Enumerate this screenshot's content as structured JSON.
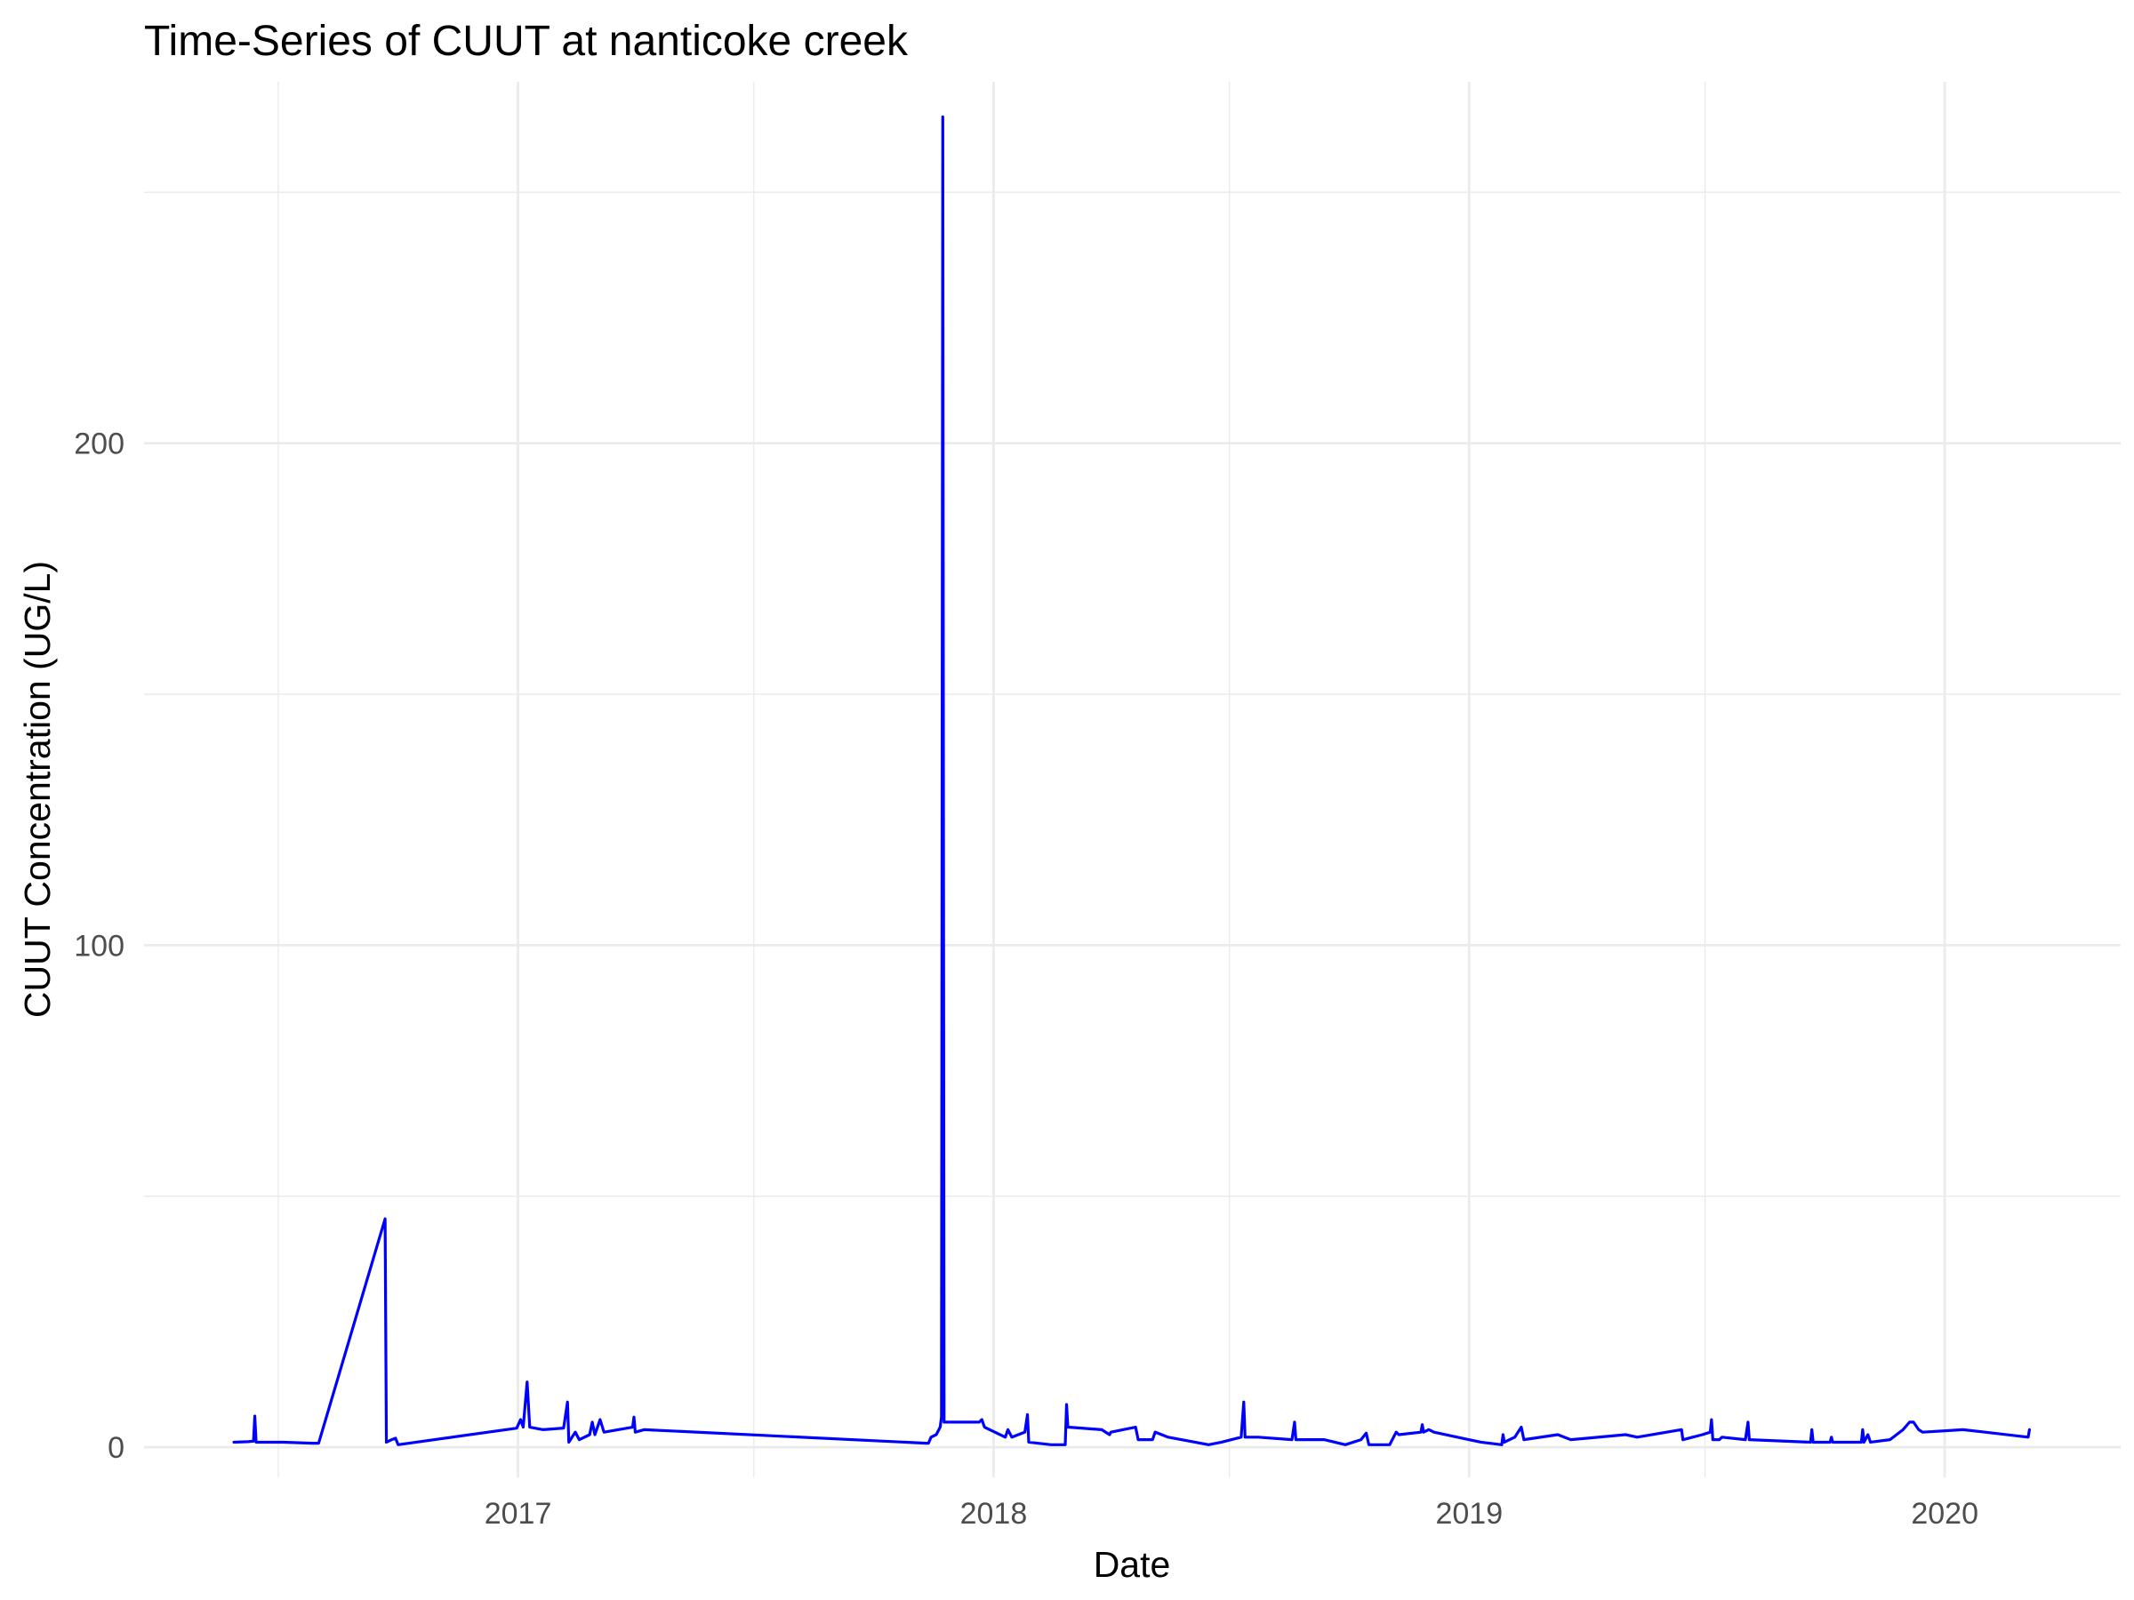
{
  "chart_data": {
    "type": "line",
    "title": "Time-Series of CUUT at nanticoke creek",
    "xlabel": "Date",
    "ylabel": "CUUT Concentration (UG/L)",
    "x_axis_type": "date",
    "xlim": [
      "2016-03-20",
      "2020-05-15"
    ],
    "ylim": [
      -6,
      272
    ],
    "x_ticks": [
      {
        "date": "2017-01-01",
        "label": "2017"
      },
      {
        "date": "2018-01-01",
        "label": "2018"
      },
      {
        "date": "2019-01-01",
        "label": "2019"
      },
      {
        "date": "2020-01-01",
        "label": "2020"
      }
    ],
    "x_minor_ticks": [
      "2016-07-01",
      "2017-07-01",
      "2018-07-01",
      "2019-07-01"
    ],
    "y_ticks": [
      0,
      100,
      200
    ],
    "y_minor_ticks": [
      50,
      150,
      250
    ],
    "grid": true,
    "legend": "none",
    "line_color": "#0000ff",
    "series": [
      {
        "points": [
          [
            "2016-05-28",
            1.0
          ],
          [
            "2016-06-08",
            1.1
          ],
          [
            "2016-06-12",
            1.2
          ],
          [
            "2016-06-13",
            6.2
          ],
          [
            "2016-06-14",
            1.0
          ],
          [
            "2016-07-05",
            1.0
          ],
          [
            "2016-07-27",
            0.8
          ],
          [
            "2016-08-01",
            0.8
          ],
          [
            "2016-09-21",
            45.5
          ],
          [
            "2016-09-22",
            1.0
          ],
          [
            "2016-09-26",
            1.5
          ],
          [
            "2016-09-29",
            1.8
          ],
          [
            "2016-10-01",
            0.5
          ],
          [
            "2016-12-31",
            3.8
          ],
          [
            "2017-01-03",
            5.5
          ],
          [
            "2017-01-05",
            4.0
          ],
          [
            "2017-01-08",
            13.0
          ],
          [
            "2017-01-10",
            4.0
          ],
          [
            "2017-01-20",
            3.5
          ],
          [
            "2017-02-05",
            3.8
          ],
          [
            "2017-02-08",
            9.0
          ],
          [
            "2017-02-09",
            1.0
          ],
          [
            "2017-02-14",
            3.0
          ],
          [
            "2017-02-17",
            1.5
          ],
          [
            "2017-02-25",
            2.5
          ],
          [
            "2017-02-27",
            5.0
          ],
          [
            "2017-03-01",
            2.5
          ],
          [
            "2017-03-05",
            5.5
          ],
          [
            "2017-03-08",
            3.0
          ],
          [
            "2017-03-30",
            4.0
          ],
          [
            "2017-03-31",
            6.0
          ],
          [
            "2017-04-01",
            3.0
          ],
          [
            "2017-04-08",
            3.5
          ],
          [
            "2017-11-10",
            0.8
          ],
          [
            "2017-11-12",
            0.8
          ],
          [
            "2017-11-14",
            2.0
          ],
          [
            "2017-11-18",
            2.5
          ],
          [
            "2017-11-21",
            4.0
          ],
          [
            "2017-11-22",
            6.0
          ],
          [
            "2017-11-23",
            265.0
          ],
          [
            "2017-11-24",
            5.0
          ],
          [
            "2017-12-21",
            5.0
          ],
          [
            "2017-12-23",
            5.5
          ],
          [
            "2017-12-25",
            4.0
          ],
          [
            "2018-01-10",
            2.0
          ],
          [
            "2018-01-12",
            3.5
          ],
          [
            "2018-01-15",
            2.0
          ],
          [
            "2018-01-25",
            3.0
          ],
          [
            "2018-01-27",
            6.5
          ],
          [
            "2018-01-28",
            1.0
          ],
          [
            "2018-02-14",
            0.5
          ],
          [
            "2018-02-25",
            0.5
          ],
          [
            "2018-02-26",
            8.5
          ],
          [
            "2018-02-27",
            4.0
          ],
          [
            "2018-03-25",
            3.5
          ],
          [
            "2018-03-31",
            2.5
          ],
          [
            "2018-04-01",
            3.0
          ],
          [
            "2018-04-20",
            4.0
          ],
          [
            "2018-04-22",
            1.5
          ],
          [
            "2018-05-03",
            1.5
          ],
          [
            "2018-05-05",
            3.0
          ],
          [
            "2018-05-15",
            2.0
          ],
          [
            "2018-06-15",
            0.5
          ],
          [
            "2018-06-25",
            1.0
          ],
          [
            "2018-07-10",
            2.0
          ],
          [
            "2018-07-12",
            9.0
          ],
          [
            "2018-07-13",
            2.0
          ],
          [
            "2018-07-23",
            2.0
          ],
          [
            "2018-08-18",
            1.5
          ],
          [
            "2018-08-20",
            5.0
          ],
          [
            "2018-08-21",
            1.5
          ],
          [
            "2018-09-12",
            1.5
          ],
          [
            "2018-09-28",
            0.5
          ],
          [
            "2018-10-10",
            1.5
          ],
          [
            "2018-10-14",
            2.8
          ],
          [
            "2018-10-16",
            0.5
          ],
          [
            "2018-11-01",
            0.5
          ],
          [
            "2018-11-06",
            3.0
          ],
          [
            "2018-11-08",
            2.5
          ],
          [
            "2018-11-25",
            3.0
          ],
          [
            "2018-11-26",
            4.5
          ],
          [
            "2018-11-27",
            3.0
          ],
          [
            "2018-12-01",
            3.5
          ],
          [
            "2018-12-05",
            3.0
          ],
          [
            "2019-01-10",
            1.0
          ],
          [
            "2019-01-26",
            0.5
          ],
          [
            "2019-01-27",
            2.5
          ],
          [
            "2019-01-28",
            1.0
          ],
          [
            "2019-02-05",
            2.0
          ],
          [
            "2019-02-10",
            4.0
          ],
          [
            "2019-02-12",
            1.5
          ],
          [
            "2019-03-10",
            2.5
          ],
          [
            "2019-03-20",
            1.5
          ],
          [
            "2019-05-01",
            2.5
          ],
          [
            "2019-05-10",
            2.0
          ],
          [
            "2019-06-13",
            3.5
          ],
          [
            "2019-06-14",
            1.5
          ],
          [
            "2019-06-29",
            2.5
          ],
          [
            "2019-07-05",
            3.0
          ],
          [
            "2019-07-06",
            5.5
          ],
          [
            "2019-07-07",
            1.5
          ],
          [
            "2019-07-12",
            1.5
          ],
          [
            "2019-07-14",
            2.0
          ],
          [
            "2019-08-01",
            1.5
          ],
          [
            "2019-08-03",
            5.0
          ],
          [
            "2019-08-04",
            1.5
          ],
          [
            "2019-09-20",
            1.0
          ],
          [
            "2019-09-21",
            3.5
          ],
          [
            "2019-09-22",
            1.0
          ],
          [
            "2019-10-05",
            1.0
          ],
          [
            "2019-10-06",
            2.0
          ],
          [
            "2019-10-07",
            1.0
          ],
          [
            "2019-10-29",
            1.0
          ],
          [
            "2019-10-30",
            3.5
          ],
          [
            "2019-10-31",
            1.0
          ],
          [
            "2019-11-03",
            2.5
          ],
          [
            "2019-11-05",
            1.0
          ],
          [
            "2019-11-20",
            1.5
          ],
          [
            "2019-11-30",
            3.5
          ],
          [
            "2019-12-05",
            5.0
          ],
          [
            "2019-12-08",
            5.0
          ],
          [
            "2019-12-12",
            3.5
          ],
          [
            "2019-12-15",
            3.0
          ],
          [
            "2020-01-15",
            3.5
          ],
          [
            "2020-02-01",
            3.0
          ],
          [
            "2020-03-05",
            2.0
          ],
          [
            "2020-03-06",
            3.5
          ]
        ]
      }
    ]
  }
}
